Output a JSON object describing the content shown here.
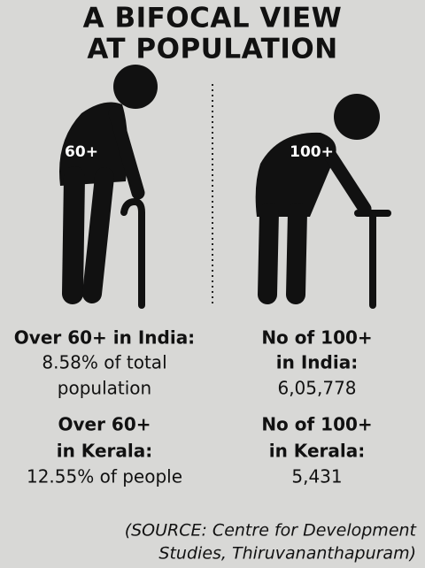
{
  "header": {
    "title_lines": [
      "A BIFOCAL VIEW",
      "AT POPULATION"
    ]
  },
  "left": {
    "badge": "60+",
    "blocks": [
      {
        "heading_lines": [
          "Over 60+ in India:"
        ],
        "text_lines": [
          "8.58% of total",
          "population"
        ]
      },
      {
        "heading_lines": [
          "Over 60+",
          "in Kerala:"
        ],
        "text_lines": [
          "12.55% of people"
        ]
      }
    ]
  },
  "right": {
    "badge": "100+",
    "blocks": [
      {
        "heading_lines": [
          "No of 100+",
          "in India:"
        ],
        "text_lines": [
          "6,05,778"
        ]
      },
      {
        "heading_lines": [
          "No of 100+",
          "in Kerala:"
        ],
        "text_lines": [
          "5,431"
        ]
      }
    ]
  },
  "source_lines": [
    "(SOURCE: Centre for Development",
    "Studies, Thiruvananthapuram)"
  ]
}
